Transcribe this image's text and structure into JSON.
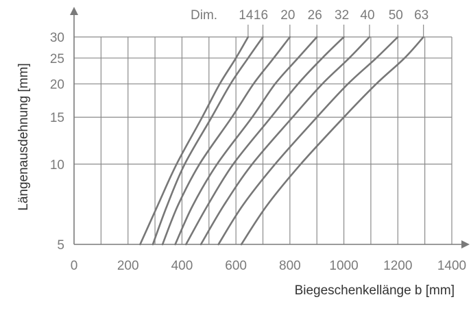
{
  "chart_data": {
    "type": "line",
    "title": "",
    "xlabel": "Biegeschenkellänge b [mm]",
    "ylabel": "Längenausdehnung [mm]",
    "xlim": [
      0,
      1400
    ],
    "ylim": [
      5,
      30
    ],
    "yscale": "log",
    "grid": true,
    "x_ticks": [
      "0",
      "200",
      "400",
      "600",
      "800",
      "1000",
      "1200",
      "1400"
    ],
    "y_ticks": [
      "5",
      "10",
      "15",
      "20",
      "25",
      "30"
    ],
    "legend_title": "Dim.",
    "series": [
      {
        "name": "14",
        "points": [
          [
            245,
            5
          ],
          [
            310,
            7
          ],
          [
            380,
            10
          ],
          [
            475,
            15
          ],
          [
            540,
            20
          ],
          [
            600,
            25
          ],
          [
            645,
            30
          ]
        ]
      },
      {
        "name": "16",
        "points": [
          [
            292,
            5
          ],
          [
            345,
            7
          ],
          [
            410,
            10
          ],
          [
            510,
            15
          ],
          [
            580,
            20
          ],
          [
            645,
            25
          ],
          [
            700,
            30
          ]
        ]
      },
      {
        "name": "20",
        "points": [
          [
            328,
            5
          ],
          [
            385,
            7
          ],
          [
            465,
            10
          ],
          [
            585,
            15
          ],
          [
            665,
            20
          ],
          [
            740,
            25
          ],
          [
            800,
            30
          ]
        ]
      },
      {
        "name": "26",
        "points": [
          [
            375,
            5
          ],
          [
            440,
            7
          ],
          [
            530,
            10
          ],
          [
            660,
            15
          ],
          [
            745,
            20
          ],
          [
            830,
            25
          ],
          [
            900,
            30
          ]
        ]
      },
      {
        "name": "32",
        "points": [
          [
            415,
            5
          ],
          [
            495,
            7
          ],
          [
            590,
            10
          ],
          [
            730,
            15
          ],
          [
            830,
            20
          ],
          [
            920,
            25
          ],
          [
            1000,
            30
          ]
        ]
      },
      {
        "name": "40",
        "points": [
          [
            470,
            5
          ],
          [
            555,
            7
          ],
          [
            660,
            10
          ],
          [
            810,
            15
          ],
          [
            920,
            20
          ],
          [
            1020,
            25
          ],
          [
            1095,
            30
          ]
        ]
      },
      {
        "name": "50",
        "points": [
          [
            535,
            5
          ],
          [
            625,
            7
          ],
          [
            745,
            10
          ],
          [
            900,
            15
          ],
          [
            1015,
            20
          ],
          [
            1120,
            25
          ],
          [
            1200,
            30
          ]
        ]
      },
      {
        "name": "63",
        "points": [
          [
            620,
            5
          ],
          [
            715,
            7
          ],
          [
            840,
            10
          ],
          [
            1000,
            15
          ],
          [
            1120,
            20
          ],
          [
            1225,
            25
          ],
          [
            1295,
            30
          ]
        ]
      }
    ]
  }
}
